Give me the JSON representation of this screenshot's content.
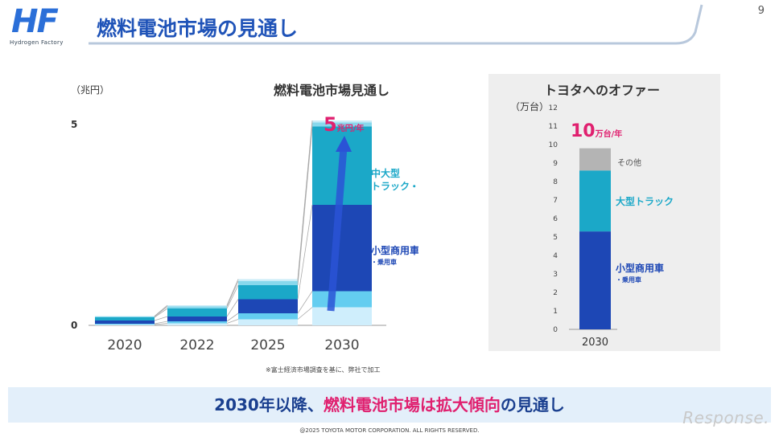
{
  "header": {
    "logo_mark": "HF",
    "logo_sub": "Hydrogen Factory",
    "title": "燃料電池市場の見通し",
    "page_number": "9"
  },
  "chart_data": [
    {
      "type": "bar",
      "stacked": true,
      "title": "燃料電池市場見通し",
      "unit_label": "（兆円）",
      "categories": [
        "2020",
        "2022",
        "2025",
        "2030"
      ],
      "yticks": [
        0,
        5
      ],
      "ylim": [
        0,
        5.2
      ],
      "series": [
        {
          "name": "",
          "color": "#cfeefc",
          "values": [
            0.02,
            0.05,
            0.15,
            0.45
          ]
        },
        {
          "name": "",
          "color": "#64cdf0",
          "values": [
            0.02,
            0.05,
            0.15,
            0.4
          ]
        },
        {
          "name": "小型商用車・乗用車",
          "color": "#1d47b5",
          "values": [
            0.08,
            0.12,
            0.35,
            2.15
          ]
        },
        {
          "name": "中大型トラック・バス",
          "color": "#1ba8c8",
          "values": [
            0.08,
            0.2,
            0.35,
            1.95
          ]
        },
        {
          "name": "",
          "color": "#88d8ec",
          "values": [
            0.02,
            0.05,
            0.1,
            0.1
          ]
        },
        {
          "name": "",
          "color": "#c9ecf7",
          "values": [
            0.01,
            0.03,
            0.05,
            0.05
          ]
        }
      ],
      "annotations": {
        "total_num": "5",
        "total_unit": "兆円/年",
        "label_trucks_l1": "中大型",
        "label_trucks_l2": "トラック・バス",
        "label_small_l1": "小型商用車",
        "label_small_l2": "・乗用車"
      },
      "colors": {
        "total": "#e0206f",
        "trucks": "#1ba8c8",
        "small": "#1d47b5",
        "arrow": "#2a53d6"
      }
    },
    {
      "type": "bar",
      "stacked": true,
      "title": "トヨタへのオファー",
      "unit_label": "（万台）",
      "categories": [
        "2030"
      ],
      "yticks": [
        0,
        1,
        2,
        3,
        4,
        5,
        6,
        7,
        8,
        9,
        10,
        11,
        12
      ],
      "ylim": [
        0,
        12
      ],
      "series": [
        {
          "name": "小型商用車・乗用車",
          "color": "#1d47b5",
          "values": [
            5.3
          ]
        },
        {
          "name": "大型トラック",
          "color": "#1ba8c8",
          "values": [
            3.3
          ]
        },
        {
          "name": "その他",
          "color": "#b4b4b4",
          "values": [
            1.2
          ]
        }
      ],
      "annotations": {
        "total_num": "10",
        "total_unit": "万台/年",
        "label_other": "その他",
        "label_trucks": "大型トラック",
        "label_small_l1": "小型商用車",
        "label_small_l2": "・乗用車"
      }
    }
  ],
  "footnote": "※富士経済市場調査を基に、弊社で加工",
  "banner": {
    "part1": "2030年以降、",
    "part2": "燃料電池市場は拡大傾向",
    "part3": "の見通し"
  },
  "copyright": "@2025 TOYOTA MOTOR CORPORATION. ALL RIGHTS RESERVED.",
  "watermark": "Response."
}
